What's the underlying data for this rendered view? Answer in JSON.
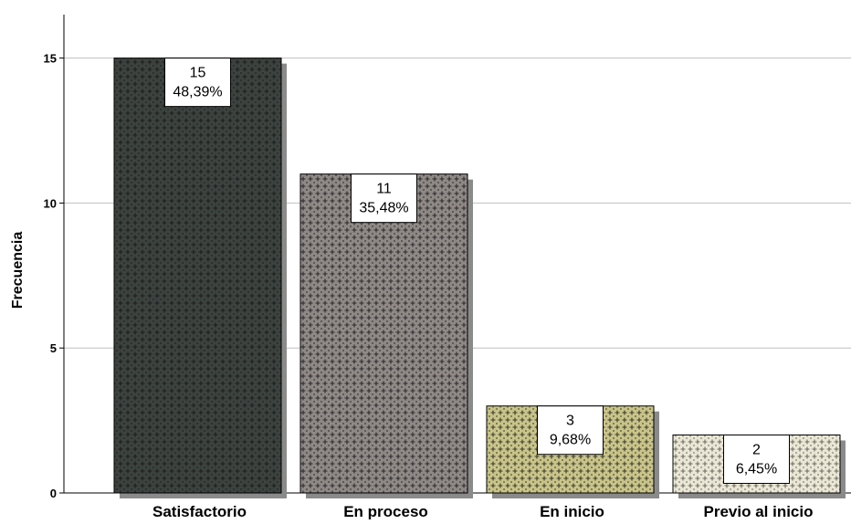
{
  "chart_data": {
    "type": "bar",
    "title": "",
    "xlabel": "",
    "ylabel": "Frecuencia",
    "categories": [
      "Satisfactorio",
      "En proceso",
      "En inicio",
      "Previo al inicio"
    ],
    "values": [
      15,
      11,
      3,
      2
    ],
    "percent_labels": [
      "48,39%",
      "35,48%",
      "9,68%",
      "6,45%"
    ],
    "ylim": [
      0,
      16.5
    ],
    "yticks": [
      0,
      5,
      10,
      15
    ],
    "grid": true,
    "legend": "none",
    "colors": {
      "bars": [
        "#3c433f",
        "#8f8986",
        "#c9c488",
        "#ebe7d7"
      ],
      "pattern_marks": [
        "#1c1c1c",
        "#2a2a2a",
        "#3a3a30",
        "#6e6a5e"
      ],
      "shadow": "#8a8a8a",
      "gridline": "#bfbfbf"
    }
  }
}
